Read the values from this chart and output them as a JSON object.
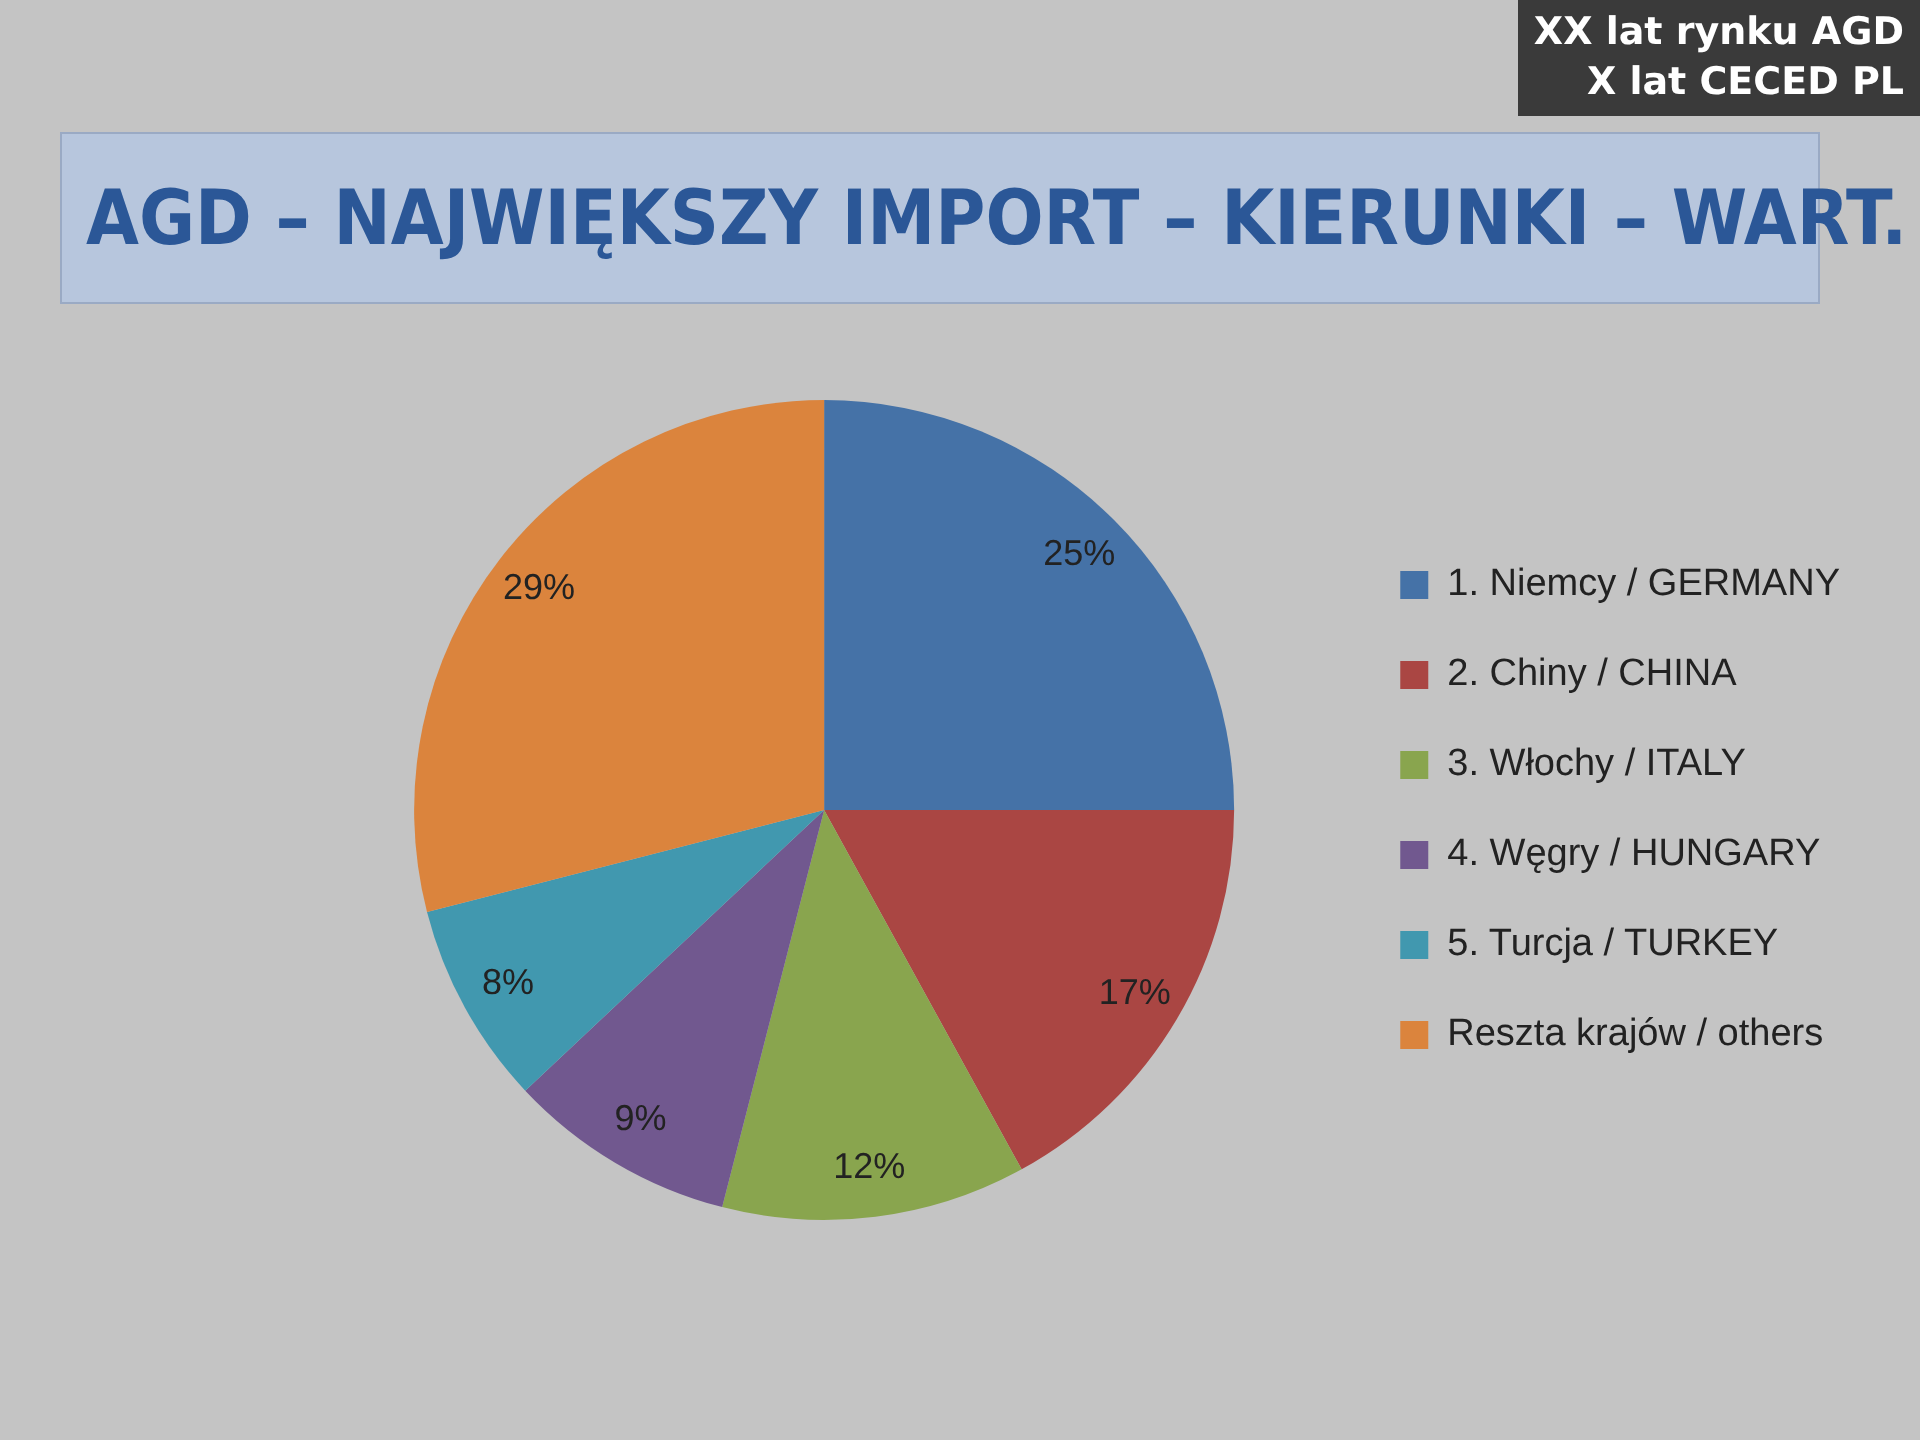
{
  "chart_data": {
    "type": "pie",
    "title": "AGD – NAJWIĘKSZY IMPORT – KIERUNKI – WART.",
    "annotations": [
      "XX lat rynku AGD",
      "X lat CECED PL"
    ],
    "categories": [
      "1. Niemcy / GERMANY",
      "2. Chiny / CHINA",
      "3. Włochy / ITALY",
      "4. Węgry / HUNGARY",
      "5. Turcja / TURKEY",
      "Reszta krajów / others"
    ],
    "values": [
      25,
      17,
      12,
      9,
      8,
      29
    ],
    "value_labels": [
      "25%",
      "17%",
      "12%",
      "9%",
      "8%",
      "29%"
    ],
    "colors": [
      "#4572a7",
      "#aa4643",
      "#89a54e",
      "#71588f",
      "#4198af",
      "#db843d"
    ],
    "legend": "right"
  }
}
